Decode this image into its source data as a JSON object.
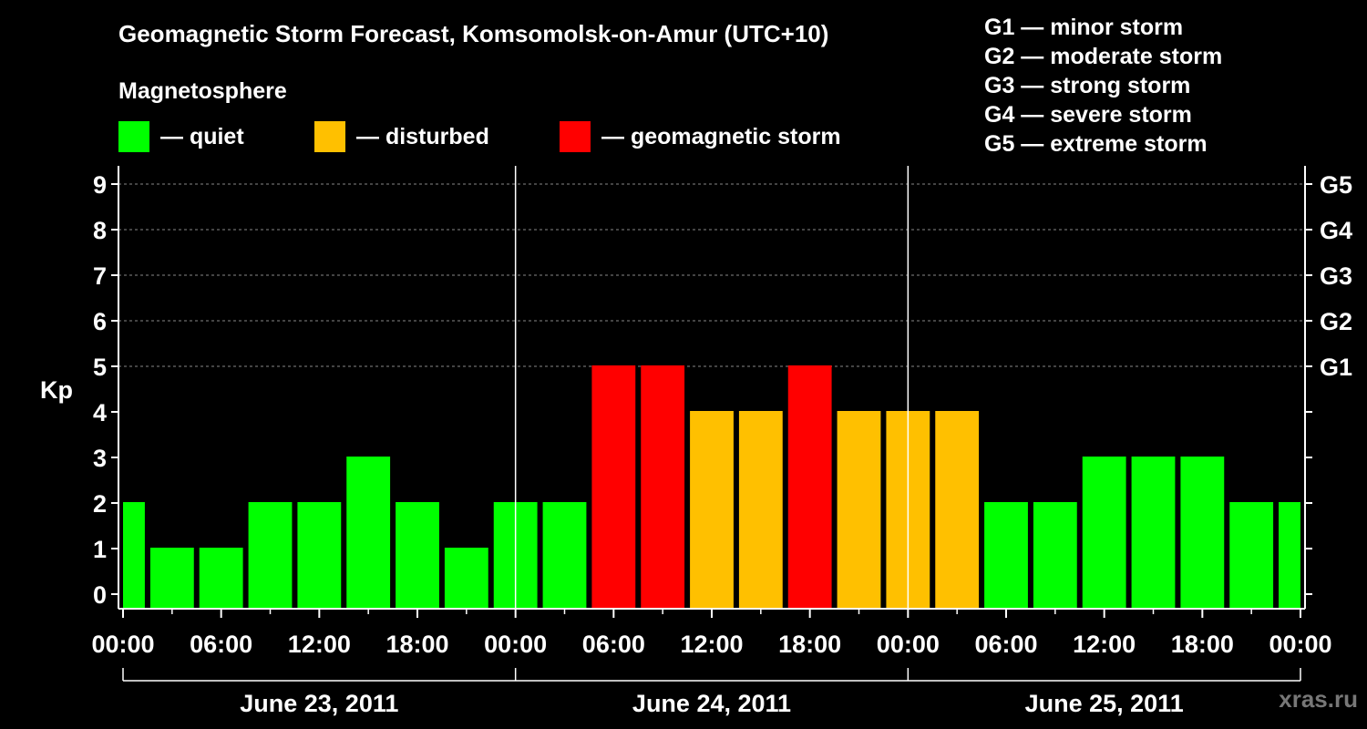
{
  "page": {
    "title": "Geomagnetic Storm Forecast, Komsomolsk-on-Amur (UTC+10)",
    "watermark": "xras.ru"
  },
  "legend": {
    "heading": "Magnetosphere",
    "items": [
      {
        "label": "— quiet",
        "color": "#00ff00"
      },
      {
        "label": "— disturbed",
        "color": "#ffc000"
      },
      {
        "label": "— geomagnetic storm",
        "color": "#ff0000"
      }
    ]
  },
  "storm_scale": [
    {
      "code": "G1",
      "label": "G1 — minor storm"
    },
    {
      "code": "G2",
      "label": "G2 — moderate storm"
    },
    {
      "code": "G3",
      "label": "G3 — strong storm"
    },
    {
      "code": "G4",
      "label": "G4 — severe storm"
    },
    {
      "code": "G5",
      "label": "G5 — extreme storm"
    }
  ],
  "chart_data": {
    "type": "bar",
    "ylabel": "Kp",
    "ylim": [
      0,
      9
    ],
    "yticks": [
      0,
      1,
      2,
      3,
      4,
      5,
      6,
      7,
      8,
      9
    ],
    "right_axis": {
      "labels": [
        "G1",
        "G2",
        "G3",
        "G4",
        "G5"
      ],
      "kp": [
        5,
        6,
        7,
        8,
        9
      ]
    },
    "x_tick_labels": [
      "00:00",
      "06:00",
      "12:00",
      "18:00",
      "00:00",
      "06:00",
      "12:00",
      "18:00",
      "00:00",
      "06:00",
      "12:00",
      "18:00",
      "00:00"
    ],
    "days": [
      "June 23, 2011",
      "June 24, 2011",
      "June 25, 2011"
    ],
    "interval_hours": 3,
    "values": [
      2,
      1,
      1,
      2,
      2,
      3,
      2,
      1,
      2,
      2,
      5,
      5,
      4,
      4,
      5,
      4,
      4,
      4,
      2,
      2,
      3,
      3,
      3,
      2,
      2
    ],
    "colors": {
      "quiet": "#00ff00",
      "disturbed": "#ffc000",
      "storm": "#ff0000"
    },
    "grid": true
  }
}
